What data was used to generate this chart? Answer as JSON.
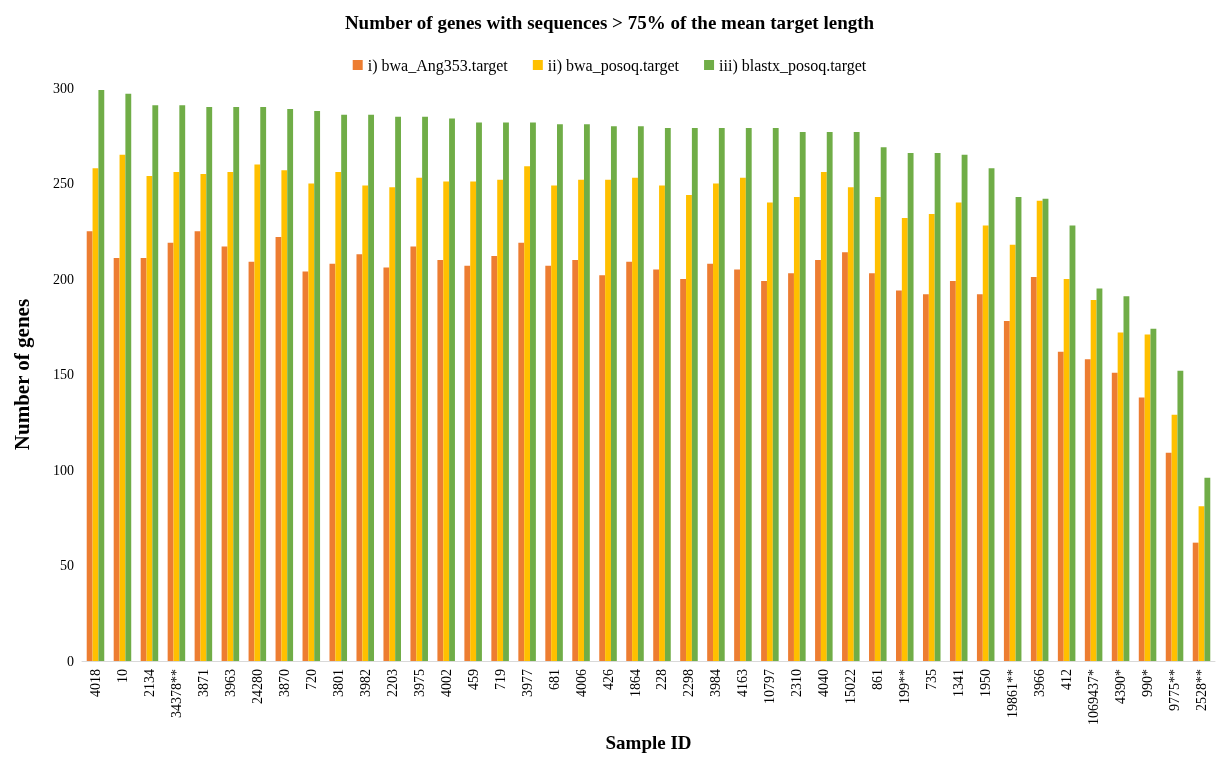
{
  "chart_data": {
    "type": "bar",
    "title": "Number of genes with sequences > 75% of the mean target length",
    "xlabel": "Sample ID",
    "ylabel": "Number of genes",
    "categories": [
      "4018",
      "10",
      "2134",
      "34378**",
      "3871",
      "3963",
      "24280",
      "3870",
      "720",
      "3801",
      "3982",
      "2203",
      "3975",
      "4002",
      "459",
      "719",
      "3977",
      "681",
      "4006",
      "426",
      "1864",
      "228",
      "2298",
      "3984",
      "4163",
      "10797",
      "2310",
      "4040",
      "15022",
      "861",
      "199**",
      "735",
      "1341",
      "1950",
      "19861**",
      "3966",
      "412",
      "1069437*",
      "4390*",
      "990*",
      "9775**",
      "2528**"
    ],
    "series": [
      {
        "name": "i) bwa_Ang353.target",
        "color": "#ed7d31",
        "values": [
          225,
          211,
          211,
          219,
          225,
          217,
          209,
          222,
          204,
          208,
          213,
          206,
          217,
          210,
          207,
          212,
          219,
          207,
          210,
          202,
          209,
          205,
          200,
          208,
          205,
          199,
          203,
          210,
          214,
          203,
          194,
          192,
          199,
          192,
          178,
          201,
          162,
          158,
          151,
          138,
          109,
          62
        ]
      },
      {
        "name": "ii) bwa_posoq.target",
        "color": "#ffc000",
        "values": [
          258,
          265,
          254,
          256,
          255,
          256,
          260,
          257,
          250,
          256,
          249,
          248,
          253,
          251,
          251,
          252,
          259,
          249,
          252,
          252,
          253,
          249,
          244,
          250,
          253,
          240,
          243,
          256,
          248,
          243,
          232,
          234,
          240,
          228,
          218,
          241,
          200,
          189,
          172,
          171,
          129,
          81
        ]
      },
      {
        "name": "iii) blastx_posoq.target",
        "color": "#70ad47",
        "values": [
          299,
          297,
          291,
          291,
          290,
          290,
          290,
          289,
          288,
          286,
          286,
          285,
          285,
          284,
          282,
          282,
          282,
          281,
          281,
          280,
          280,
          279,
          279,
          279,
          279,
          279,
          277,
          277,
          277,
          269,
          266,
          266,
          265,
          258,
          243,
          242,
          228,
          195,
          191,
          174,
          152,
          96
        ]
      }
    ],
    "ylim": [
      0,
      300
    ],
    "yticks": [
      0,
      50,
      100,
      150,
      200,
      250,
      300
    ],
    "grid": false,
    "legend": "top"
  }
}
